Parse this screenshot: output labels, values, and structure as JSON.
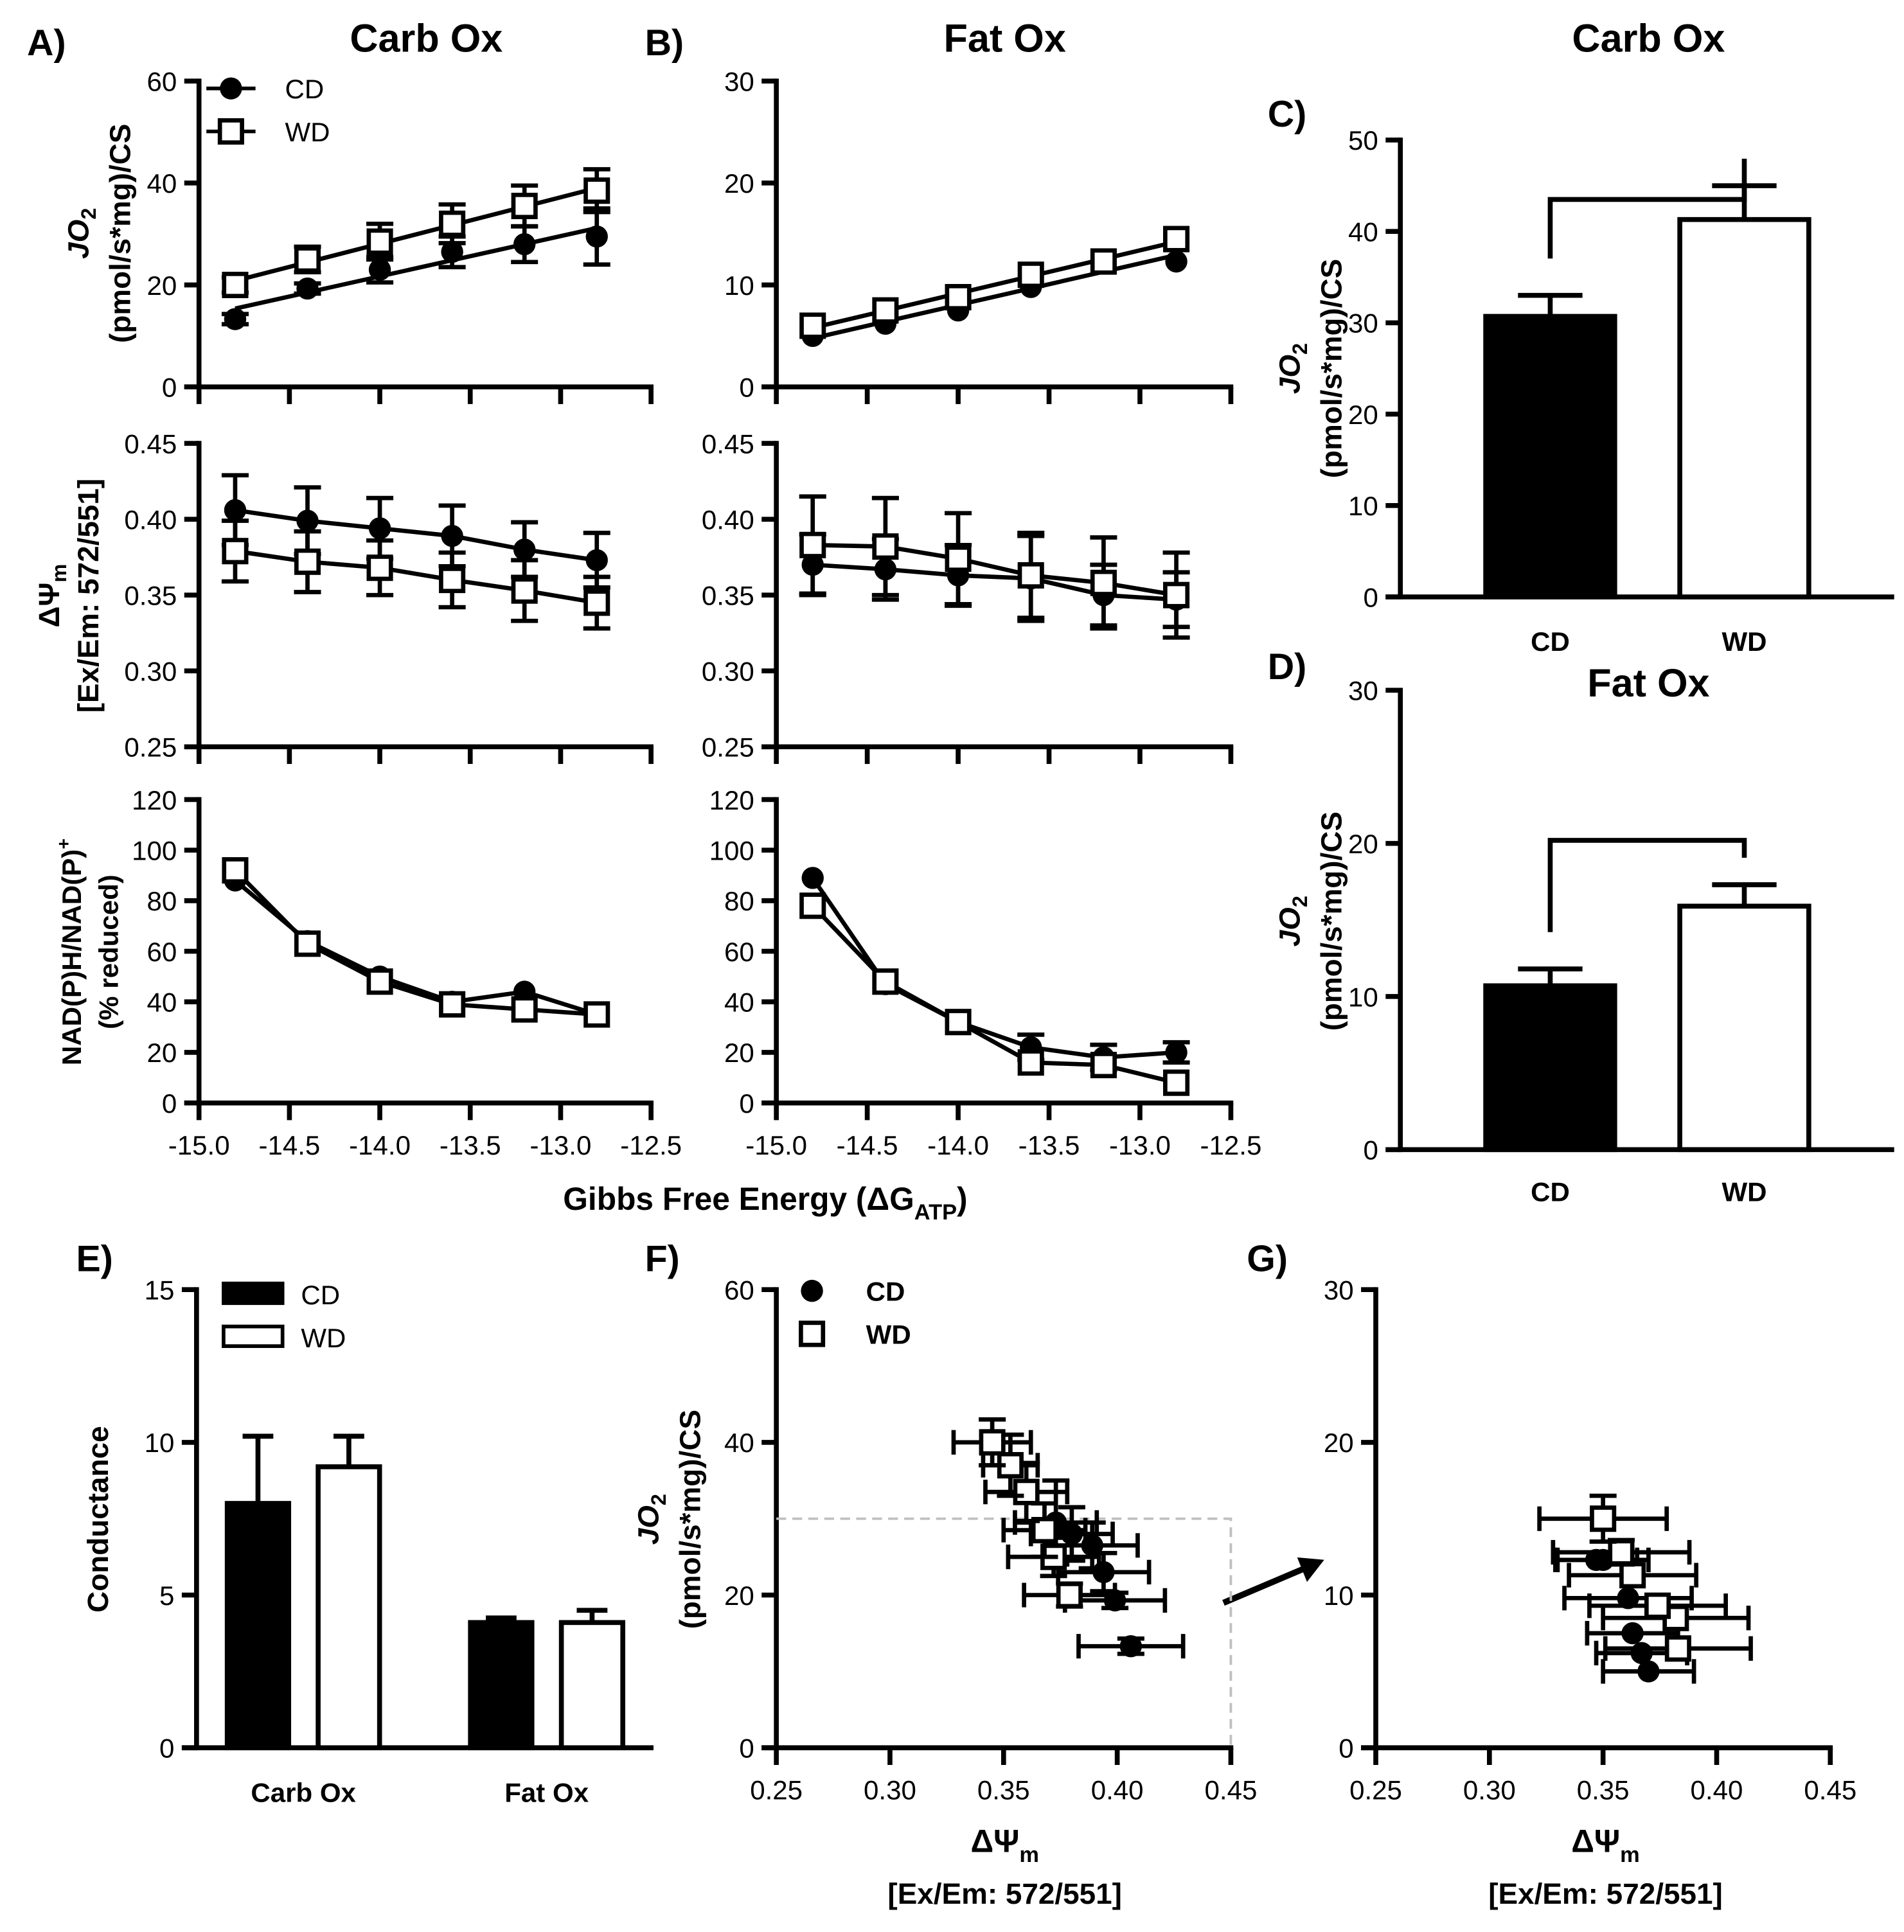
{
  "labels": {
    "A": "A)",
    "B": "B)",
    "C": "C)",
    "D": "D)",
    "E": "E)",
    "F": "F)",
    "G": "G)",
    "title_A": "Carb Ox",
    "title_B": "Fat Ox",
    "title_C": "Carb Ox",
    "title_D": "Fat Ox",
    "jo2": "JO",
    "jo2_sub": "2",
    "jo2_units": "(pmol/s*mg)/CS",
    "dpsi": "ΔΨ",
    "dpsi_sub": "m",
    "dpsi_units": "[Ex/Em: 572/551]",
    "nadh": "NAD(P)H/NAD(P)",
    "nadh_sup": "+",
    "nadh_units": "(% reduced)",
    "gibbs_pre": "Gibbs Free Energy (ΔG",
    "gibbs_sub": "ATP",
    "gibbs_post": ")",
    "conductance": "Conductance",
    "legend_cd": "CD",
    "legend_wd": "WD"
  },
  "colors": {
    "cd": "#000000",
    "wd": "#ffffff",
    "axis": "#000000",
    "dashed": "#c0c0c0"
  },
  "chart_data": [
    {
      "id": "A1",
      "type": "line",
      "fit": true,
      "xlim": [
        -15,
        -12.5
      ],
      "ylim": [
        0,
        60
      ],
      "xticks": [
        -15,
        -14.5,
        -14,
        -13.5,
        -13,
        -12.5
      ],
      "yticks": [
        0,
        20,
        40,
        60
      ],
      "ytick_labels": [
        "0",
        "20",
        "40",
        "60"
      ],
      "series": [
        {
          "name": "CD",
          "x": [
            -14.8,
            -14.4,
            -14.0,
            -13.6,
            -13.2,
            -12.8
          ],
          "y": [
            13.3,
            19.3,
            23,
            26.5,
            28,
            29.5
          ],
          "err": [
            1,
            1,
            2.5,
            3,
            3.5,
            5.5
          ]
        },
        {
          "name": "WD",
          "x": [
            -14.8,
            -14.4,
            -14.0,
            -13.6,
            -13.2,
            -12.8
          ],
          "y": [
            20,
            25,
            28.5,
            32,
            35.5,
            38.5
          ],
          "err": [
            1.5,
            2.5,
            3.5,
            3.8,
            4,
            4.2
          ]
        }
      ]
    },
    {
      "id": "A2",
      "type": "line",
      "xlim": [
        -15,
        -12.5
      ],
      "ylim": [
        0.25,
        0.45
      ],
      "xticks": [
        -15,
        -14.5,
        -14,
        -13.5,
        -13,
        -12.5
      ],
      "yticks": [
        0.25,
        0.3,
        0.35,
        0.4,
        0.45
      ],
      "ytick_labels": [
        "0.25",
        "0.30",
        "0.35",
        "0.40",
        "0.45"
      ],
      "series": [
        {
          "name": "CD",
          "x": [
            -14.8,
            -14.4,
            -14.0,
            -13.6,
            -13.2,
            -12.8
          ],
          "y": [
            0.406,
            0.399,
            0.394,
            0.389,
            0.38,
            0.373
          ],
          "err": [
            0.023,
            0.022,
            0.02,
            0.02,
            0.018,
            0.018
          ]
        },
        {
          "name": "WD",
          "x": [
            -14.8,
            -14.4,
            -14.0,
            -13.6,
            -13.2,
            -12.8
          ],
          "y": [
            0.379,
            0.372,
            0.368,
            0.36,
            0.353,
            0.345
          ],
          "err": [
            0.02,
            0.02,
            0.018,
            0.018,
            0.02,
            0.017
          ]
        }
      ]
    },
    {
      "id": "A3",
      "type": "line",
      "xlim": [
        -15,
        -12.5
      ],
      "ylim": [
        0,
        120
      ],
      "xticks": [
        -15,
        -14.5,
        -14,
        -13.5,
        -13,
        -12.5
      ],
      "xtick_labels": [
        "-15.0",
        "-14.5",
        "-14.0",
        "-13.5",
        "-13.0",
        "-12.5"
      ],
      "yticks": [
        0,
        20,
        40,
        60,
        80,
        100,
        120
      ],
      "ytick_labels": [
        "0",
        "20",
        "40",
        "60",
        "80",
        "100",
        "120"
      ],
      "series": [
        {
          "name": "CD",
          "x": [
            -14.8,
            -14.4,
            -14.0,
            -13.6,
            -13.2,
            -12.8
          ],
          "y": [
            88,
            64,
            50,
            40,
            44,
            35
          ],
          "err": [
            0,
            0,
            0,
            0,
            0,
            0
          ]
        },
        {
          "name": "WD",
          "x": [
            -14.8,
            -14.4,
            -14.0,
            -13.6,
            -13.2,
            -12.8
          ],
          "y": [
            92,
            63,
            48,
            39,
            37,
            35
          ],
          "err": [
            0,
            0,
            0,
            0,
            0,
            0
          ]
        }
      ]
    },
    {
      "id": "B1",
      "type": "line",
      "fit": true,
      "xlim": [
        -15,
        -12.5
      ],
      "ylim": [
        0,
        30
      ],
      "xticks": [
        -15,
        -14.5,
        -14,
        -13.5,
        -13,
        -12.5
      ],
      "yticks": [
        0,
        10,
        20,
        30
      ],
      "ytick_labels": [
        "0",
        "10",
        "20",
        "30"
      ],
      "series": [
        {
          "name": "CD",
          "x": [
            -14.8,
            -14.4,
            -14.0,
            -13.6,
            -13.2,
            -12.8
          ],
          "y": [
            5,
            6.2,
            7.5,
            9.8,
            12.3,
            12.3
          ],
          "err": [
            0,
            0,
            0,
            0,
            0,
            0
          ]
        },
        {
          "name": "WD",
          "x": [
            -14.8,
            -14.4,
            -14.0,
            -13.6,
            -13.2,
            -12.8
          ],
          "y": [
            6,
            7.5,
            8.8,
            11,
            12.3,
            14.5
          ],
          "err": [
            0,
            0,
            0,
            0,
            0,
            0
          ]
        }
      ]
    },
    {
      "id": "B2",
      "type": "line",
      "xlim": [
        -15,
        -12.5
      ],
      "ylim": [
        0.25,
        0.45
      ],
      "xticks": [
        -15,
        -14.5,
        -14,
        -13.5,
        -13,
        -12.5
      ],
      "yticks": [
        0.25,
        0.3,
        0.35,
        0.4,
        0.45
      ],
      "ytick_labels": [
        "0.25",
        "0.30",
        "0.35",
        "0.40",
        "0.45"
      ],
      "series": [
        {
          "name": "CD",
          "x": [
            -14.8,
            -14.4,
            -14.0,
            -13.6,
            -13.2,
            -12.8
          ],
          "y": [
            0.37,
            0.367,
            0.363,
            0.361,
            0.35,
            0.347
          ],
          "err": [
            0.02,
            0.02,
            0.02,
            0.028,
            0.02,
            0.018
          ]
        },
        {
          "name": "WD",
          "x": [
            -14.8,
            -14.4,
            -14.0,
            -13.6,
            -13.2,
            -12.8
          ],
          "y": [
            0.383,
            0.382,
            0.374,
            0.363,
            0.358,
            0.35
          ],
          "err": [
            0.032,
            0.032,
            0.03,
            0.028,
            0.03,
            0.028
          ]
        }
      ]
    },
    {
      "id": "B3",
      "type": "line",
      "xlim": [
        -15,
        -12.5
      ],
      "ylim": [
        0,
        120
      ],
      "xticks": [
        -15,
        -14.5,
        -14,
        -13.5,
        -13,
        -12.5
      ],
      "xtick_labels": [
        "-15.0",
        "-14.5",
        "-14.0",
        "-13.5",
        "-13.0",
        "-12.5"
      ],
      "yticks": [
        0,
        20,
        40,
        60,
        80,
        100,
        120
      ],
      "ytick_labels": [
        "0",
        "20",
        "40",
        "60",
        "80",
        "100",
        "120"
      ],
      "series": [
        {
          "name": "CD",
          "x": [
            -14.8,
            -14.4,
            -14.0,
            -13.6,
            -13.2,
            -12.8
          ],
          "y": [
            89,
            47,
            32,
            22,
            18,
            20
          ],
          "err": [
            0,
            0,
            0,
            5,
            5,
            4
          ]
        },
        {
          "name": "WD",
          "x": [
            -14.8,
            -14.4,
            -14.0,
            -13.6,
            -13.2,
            -12.8
          ],
          "y": [
            78,
            48,
            32,
            16,
            15,
            8
          ],
          "err": [
            0,
            0,
            0,
            0,
            0,
            0
          ]
        }
      ]
    },
    {
      "id": "C",
      "type": "bar",
      "title": "Carb Ox",
      "ylim": [
        0,
        50
      ],
      "yticks": [
        0,
        10,
        20,
        30,
        40,
        50
      ],
      "ytick_labels": [
        "0",
        "10",
        "20",
        "30",
        "40",
        "50"
      ],
      "groups": [
        {
          "label": "",
          "bars": [
            {
              "name": "CD",
              "label": "CD",
              "value": 30.7,
              "err": 2.3
            },
            {
              "name": "WD",
              "label": "WD",
              "value": 41.3,
              "err": 3.7
            }
          ]
        }
      ],
      "bracket": 43.5
    },
    {
      "id": "D",
      "type": "bar",
      "title": "Fat Ox",
      "ylim": [
        0,
        30
      ],
      "yticks": [
        0,
        10,
        20,
        30
      ],
      "ytick_labels": [
        "0",
        "10",
        "20",
        "30"
      ],
      "groups": [
        {
          "label": "",
          "bars": [
            {
              "name": "CD",
              "label": "CD",
              "value": 10.7,
              "err": 1.1
            },
            {
              "name": "WD",
              "label": "WD",
              "value": 15.9,
              "err": 1.4
            }
          ]
        }
      ],
      "bracket": 20.2
    },
    {
      "id": "E",
      "type": "bar",
      "ylim": [
        0,
        15
      ],
      "yticks": [
        0,
        5,
        10,
        15
      ],
      "ytick_labels": [
        "0",
        "5",
        "10",
        "15"
      ],
      "groups": [
        {
          "label": "Carb Ox",
          "bars": [
            {
              "name": "CD",
              "value": 8.0,
              "err": 2.2
            },
            {
              "name": "WD",
              "value": 9.2,
              "err": 1.0
            }
          ]
        },
        {
          "label": "Fat Ox",
          "bars": [
            {
              "name": "CD",
              "value": 4.1,
              "err": 0.15
            },
            {
              "name": "WD",
              "value": 4.1,
              "err": 0.4
            }
          ]
        }
      ]
    },
    {
      "id": "F",
      "type": "scatter",
      "xlim": [
        0.25,
        0.45
      ],
      "ylim": [
        0,
        60
      ],
      "xticks": [
        0.25,
        0.3,
        0.35,
        0.4,
        0.45
      ],
      "xtick_labels": [
        "0.25",
        "0.30",
        "0.35",
        "0.40",
        "0.45"
      ],
      "yticks": [
        0,
        20,
        40,
        60
      ],
      "ytick_labels": [
        "0",
        "20",
        "40",
        "60"
      ],
      "zoom_box": {
        "x": [
          0.25,
          0.45
        ],
        "y": [
          0,
          30
        ]
      },
      "series": [
        {
          "name": "CD",
          "x": [
            0.406,
            0.399,
            0.394,
            0.389,
            0.38,
            0.373
          ],
          "y": [
            13.3,
            19.3,
            23,
            26.5,
            28,
            29.5
          ],
          "xerr": [
            0.023,
            0.022,
            0.02,
            0.02,
            0.018,
            0.018
          ],
          "err": [
            1,
            1,
            2.5,
            3,
            3.5,
            5.5
          ]
        },
        {
          "name": "WD",
          "x": [
            0.379,
            0.372,
            0.368,
            0.36,
            0.353,
            0.345
          ],
          "y": [
            20,
            25,
            28.5,
            33.5,
            37,
            40
          ],
          "xerr": [
            0.02,
            0.02,
            0.018,
            0.018,
            0.012,
            0.017
          ],
          "err": [
            1.5,
            2.5,
            3.5,
            3.8,
            4,
            3
          ]
        }
      ]
    },
    {
      "id": "G",
      "type": "scatter",
      "xlim": [
        0.25,
        0.45
      ],
      "ylim": [
        0,
        30
      ],
      "xticks": [
        0.25,
        0.3,
        0.35,
        0.4,
        0.45
      ],
      "xtick_labels": [
        "0.25",
        "0.30",
        "0.35",
        "0.40",
        "0.45"
      ],
      "yticks": [
        0,
        10,
        20,
        30
      ],
      "ytick_labels": [
        "0",
        "10",
        "20",
        "30"
      ],
      "series": [
        {
          "name": "CD",
          "x": [
            0.37,
            0.367,
            0.363,
            0.361,
            0.35,
            0.347
          ],
          "y": [
            5,
            6.2,
            7.5,
            9.8,
            12.3,
            12.3
          ],
          "xerr": [
            0.02,
            0.02,
            0.02,
            0.028,
            0.02,
            0.018
          ],
          "err": [
            0,
            0,
            0,
            0,
            0,
            0
          ]
        },
        {
          "name": "WD",
          "x": [
            0.383,
            0.382,
            0.374,
            0.363,
            0.358,
            0.35
          ],
          "y": [
            6.5,
            8.5,
            9.3,
            11.3,
            12.8,
            15
          ],
          "xerr": [
            0.032,
            0.032,
            0.03,
            0.028,
            0.03,
            0.028
          ],
          "err": [
            0,
            0,
            0,
            0,
            0.8,
            1.5
          ]
        }
      ]
    }
  ]
}
